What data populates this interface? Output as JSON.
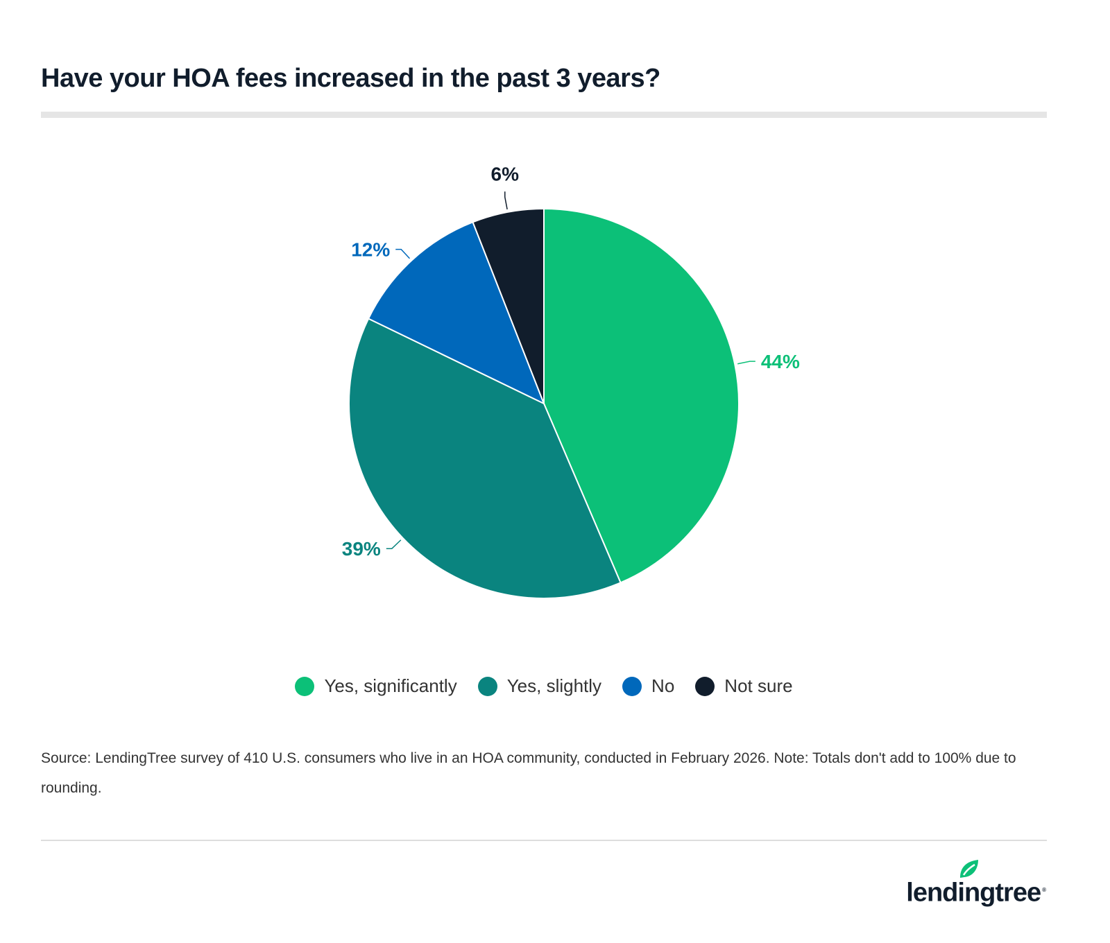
{
  "title": "Have your HOA fees increased in the past 3 years?",
  "chart_data": {
    "type": "pie",
    "title": "Have your HOA fees increased in the past 3 years?",
    "categories": [
      "Yes, significantly",
      "Yes, slightly",
      "No",
      "Not sure"
    ],
    "values": [
      44,
      39,
      12,
      6
    ],
    "labels": [
      "44%",
      "39%",
      "12%",
      "6%"
    ],
    "colors": [
      "#0cc078",
      "#0a847f",
      "#0068bb",
      "#111d2c"
    ],
    "start_angle": "top, clockwise",
    "legend_position": "bottom"
  },
  "source": "Source: LendingTree survey of 410 U.S. consumers who live in an HOA community, conducted in February 2026. Note: Totals don't add to 100% due to rounding.",
  "logo": {
    "text": "lendingtree",
    "color": "#111d2c",
    "leaf_color": "#0cc078"
  }
}
